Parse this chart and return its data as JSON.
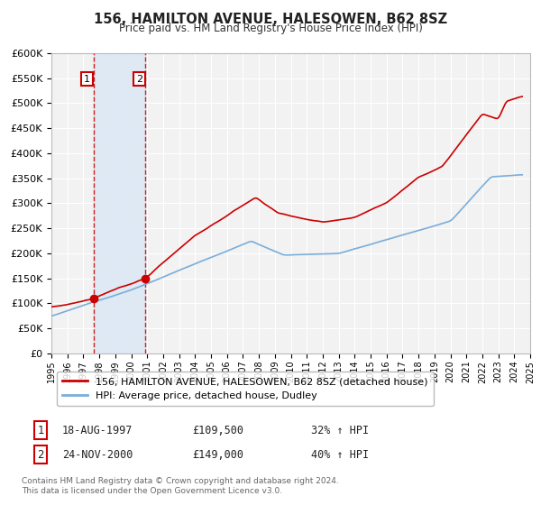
{
  "title": "156, HAMILTON AVENUE, HALESOWEN, B62 8SZ",
  "subtitle": "Price paid vs. HM Land Registry's House Price Index (HPI)",
  "red_label": "156, HAMILTON AVENUE, HALESOWEN, B62 8SZ (detached house)",
  "blue_label": "HPI: Average price, detached house, Dudley",
  "sale1_date": "18-AUG-1997",
  "sale1_price": 109500,
  "sale1_hpi": "32% ↑ HPI",
  "sale1_year": 1997.63,
  "sale2_date": "24-NOV-2000",
  "sale2_price": 149000,
  "sale2_hpi": "40% ↑ HPI",
  "sale2_year": 2000.9,
  "footnote1": "Contains HM Land Registry data © Crown copyright and database right 2024.",
  "footnote2": "This data is licensed under the Open Government Licence v3.0.",
  "xmin": 1995,
  "xmax": 2025,
  "ymin": 0,
  "ymax": 600000,
  "background_color": "#ffffff",
  "plot_bg_color": "#f2f2f2",
  "grid_color": "#ffffff",
  "red_color": "#cc0000",
  "blue_color": "#7aadda",
  "shade_color": "#dce8f5"
}
